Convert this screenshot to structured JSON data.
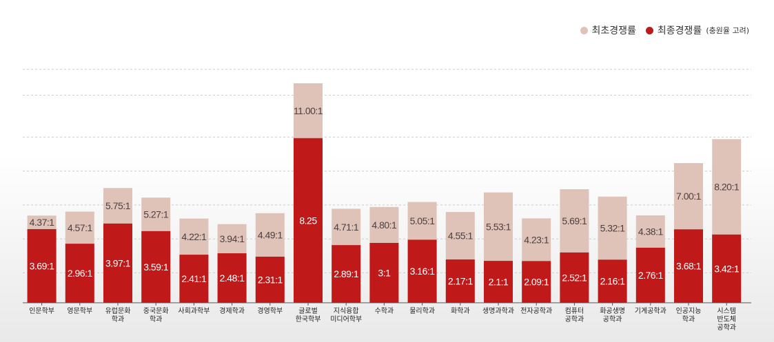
{
  "legend": {
    "first_label": "최초경쟁률",
    "final_label": "최종경쟁률",
    "final_note": "(충원율 고려)"
  },
  "colors": {
    "first": "#dfc3b8",
    "final": "#c0191a",
    "first_text": "#4a4040",
    "final_text": "#ffffff",
    "grid": "#cccccc"
  },
  "chart_data": {
    "type": "bar",
    "grid": true,
    "legend_position": "top-right",
    "categories": [
      [
        "인문학부"
      ],
      [
        "영문학부"
      ],
      [
        "유럽문화",
        "학과"
      ],
      [
        "중국문화",
        "학과"
      ],
      [
        "사회과학부"
      ],
      [
        "경제학과"
      ],
      [
        "경영학부"
      ],
      [
        "글로벌",
        "한국학부"
      ],
      [
        "지식융합",
        "미디어학부"
      ],
      [
        "수학과"
      ],
      [
        "물리학과"
      ],
      [
        "화학과"
      ],
      [
        "생명과학과"
      ],
      [
        "전자공학과"
      ],
      [
        "컴퓨터",
        "공학과"
      ],
      [
        "화공생명",
        "공학과"
      ],
      [
        "기계공학과"
      ],
      [
        "인공지능",
        "학과"
      ],
      [
        "시스템",
        "반도체",
        "공학과"
      ]
    ],
    "series": [
      {
        "name": "최초경쟁률",
        "values": [
          4.37,
          4.57,
          5.75,
          5.27,
          4.22,
          3.94,
          4.49,
          11.0,
          4.71,
          4.8,
          5.05,
          4.55,
          5.53,
          4.23,
          5.69,
          5.32,
          4.38,
          7.0,
          8.2
        ],
        "labels": [
          "4.37:1",
          "4.57:1",
          "5.75:1",
          "5.27:1",
          "4.22:1",
          "3.94:1",
          "4.49:1",
          "11.00:1",
          "4.71:1",
          "4.80:1",
          "5.05:1",
          "4.55:1",
          "5.53:1",
          "4.23:1",
          "5.69:1",
          "5.32:1",
          "4.38:1",
          "7.00:1",
          "8.20:1"
        ]
      },
      {
        "name": "최종경쟁률",
        "values": [
          3.69,
          2.96,
          3.97,
          3.59,
          2.41,
          2.48,
          2.31,
          8.25,
          2.89,
          3.0,
          3.16,
          2.17,
          2.1,
          2.09,
          2.52,
          2.16,
          2.76,
          3.68,
          3.42
        ],
        "labels": [
          "3.69:1",
          "2.96:1",
          "3.97:1",
          "3.59:1",
          "2.41:1",
          "2.48:1",
          "2.31:1",
          "8.25",
          "2.89:1",
          "3:1",
          "3.16:1",
          "2.17:1",
          "2.1:1",
          "2.09:1",
          "2.52:1",
          "2.16:1",
          "2.76:1",
          "3.68:1",
          "3.42:1"
        ]
      }
    ]
  }
}
